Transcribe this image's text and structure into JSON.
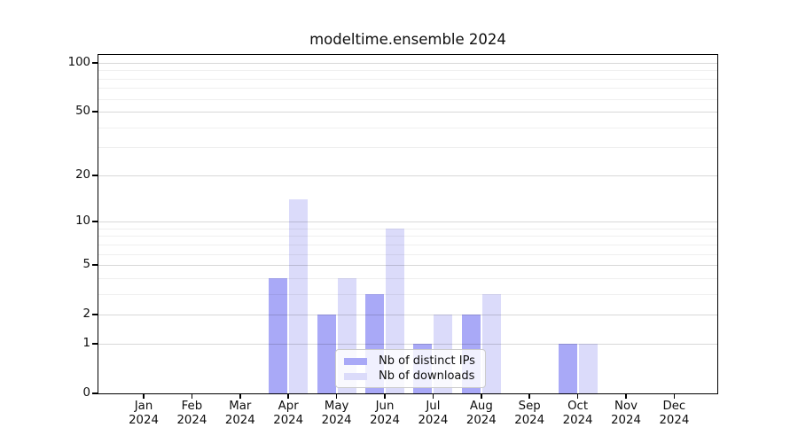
{
  "title": "modeltime.ensemble 2024",
  "chart_data": {
    "type": "bar",
    "title": "modeltime.ensemble 2024",
    "categories": [
      {
        "month": "Jan",
        "year": "2024"
      },
      {
        "month": "Feb",
        "year": "2024"
      },
      {
        "month": "Mar",
        "year": "2024"
      },
      {
        "month": "Apr",
        "year": "2024"
      },
      {
        "month": "May",
        "year": "2024"
      },
      {
        "month": "Jun",
        "year": "2024"
      },
      {
        "month": "Jul",
        "year": "2024"
      },
      {
        "month": "Aug",
        "year": "2024"
      },
      {
        "month": "Sep",
        "year": "2024"
      },
      {
        "month": "Oct",
        "year": "2024"
      },
      {
        "month": "Nov",
        "year": "2024"
      },
      {
        "month": "Dec",
        "year": "2024"
      }
    ],
    "series": [
      {
        "name": "Nb of distinct IPs",
        "color": "#A9A9F7",
        "values": [
          0,
          0,
          0,
          4,
          2,
          3,
          1,
          2,
          0,
          1,
          0,
          0
        ]
      },
      {
        "name": "Nb of downloads",
        "color": "#DBDBFA",
        "values": [
          0,
          0,
          0,
          14,
          4,
          9,
          2,
          3,
          0,
          1,
          0,
          0
        ]
      }
    ],
    "y_axis": {
      "scale": "log1p",
      "major_ticks": [
        0,
        1,
        2,
        5,
        10,
        20,
        50,
        100
      ],
      "minor_gridlines": [
        3,
        4,
        6,
        7,
        8,
        9,
        30,
        40,
        60,
        70,
        80,
        90
      ],
      "ylim": [
        0,
        100
      ]
    },
    "xlabel": "",
    "ylabel": "",
    "grid": true,
    "legend_position": "lower center"
  },
  "colors": {
    "major_grid": "#D8D8D8",
    "minor_grid": "#EFEFEF",
    "axis": "#000000",
    "text": "#0d0d0d",
    "legend_border": "#CBCBCB"
  }
}
